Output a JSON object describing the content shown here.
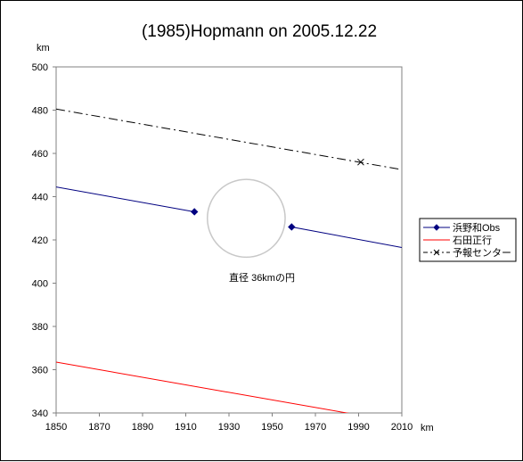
{
  "chart_data": {
    "type": "line",
    "title": "(1985)Hopmann on 2005.12.22",
    "x_unit_label": "km",
    "y_unit_label": "km",
    "xlim": [
      1850,
      2010
    ],
    "ylim": [
      340,
      500
    ],
    "x_ticks": [
      1850,
      1870,
      1890,
      1910,
      1930,
      1950,
      1970,
      1990,
      2010
    ],
    "y_ticks": [
      340,
      360,
      380,
      400,
      420,
      440,
      460,
      480,
      500
    ],
    "grid": false,
    "legend_position": "right",
    "series": [
      {
        "name": "浜野和Obs",
        "color": "#000080",
        "style": "solid",
        "marker": "diamond",
        "segments": [
          [
            [
              1850,
              444.5
            ],
            [
              1914,
              433
            ]
          ],
          [
            [
              1959,
              426
            ],
            [
              2010,
              416.5
            ]
          ]
        ],
        "points": [
          [
            1914,
            433
          ],
          [
            1959,
            426
          ]
        ]
      },
      {
        "name": "石田正行",
        "color": "#ff0000",
        "style": "solid",
        "marker": "none",
        "segments": [
          [
            [
              1850,
              363.5
            ],
            [
              1993,
              338.5
            ]
          ]
        ],
        "points": []
      },
      {
        "name": "予報センター",
        "color": "#000000",
        "style": "dashdot",
        "marker": "x",
        "segments": [
          [
            [
              1850,
              480.5
            ],
            [
              2010,
              452.5
            ]
          ]
        ],
        "points": [
          [
            1991,
            456
          ]
        ]
      }
    ],
    "circle": {
      "center": [
        1938,
        430
      ],
      "diameter_km": 36,
      "color": "#c8c8c8"
    },
    "annotation": "直径 36kmの円"
  }
}
